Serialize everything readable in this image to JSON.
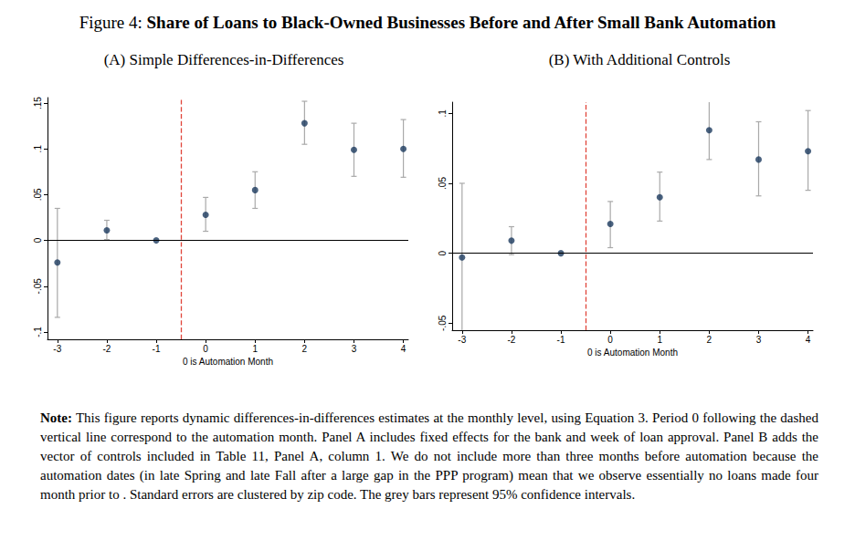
{
  "title_label": "Figure 4:",
  "title": "Share of Loans to Black-Owned Businesses Before and After Small Bank Automation",
  "note_label": "Note:",
  "note": "This figure reports dynamic differences-in-differences estimates at the monthly level, using Equation 3. Period 0 following the dashed vertical line correspond to the automation month. Panel A includes fixed effects for the bank and week of loan approval. Panel B adds the vector of controls included in Table 11, Panel A, column 1. We do not include more than three months before automation because the automation dates (in late Spring and late Fall after a large gap in the PPP program) mean that we observe essentially no loans made four month prior to . Standard errors are clustered by zip code. The grey bars represent 95% confidence intervals.",
  "chart_data": [
    {
      "type": "scatter",
      "title": "(A) Simple Differences-in-Differences",
      "x_label": "0 is Automation Month",
      "x": [
        -3,
        -2,
        -1,
        0,
        1,
        2,
        3,
        4
      ],
      "values": [
        -0.024,
        0.011,
        0,
        0.028,
        0.055,
        0.128,
        0.099,
        0.1
      ],
      "ci_low": [
        -0.084,
        0.001,
        null,
        0.01,
        0.035,
        0.105,
        0.07,
        0.069
      ],
      "ci_high": [
        0.035,
        0.022,
        null,
        0.047,
        0.075,
        0.152,
        0.128,
        0.132
      ],
      "color": "#1b3a5e",
      "vline": -0.5,
      "hline": 0,
      "xlim": [
        -3.2,
        4.1
      ],
      "xticks": [
        -3,
        -2,
        -1,
        0,
        1,
        2,
        3,
        4
      ],
      "ylim": [
        -0.108,
        0.156
      ],
      "yticks": [
        {
          "value": -0.1,
          "label": "-.1"
        },
        {
          "value": -0.05,
          "label": "-.05"
        },
        0,
        {
          "value": 0.05,
          "label": ".05"
        },
        {
          "value": 0.1,
          "label": ".1"
        },
        {
          "value": 0.15,
          "label": ".15"
        }
      ],
      "grid": false
    },
    {
      "type": "scatter",
      "title": "(B) With Additional Controls",
      "x_label": "0 is Automation Month",
      "x": [
        -3,
        -2,
        -1,
        0,
        1,
        2,
        3,
        4
      ],
      "values": [
        -0.003,
        0.009,
        0,
        0.021,
        0.04,
        0.088,
        0.067,
        0.073
      ],
      "ci_low": [
        -0.057,
        -0.001,
        null,
        0.004,
        0.023,
        0.067,
        0.041,
        0.045
      ],
      "ci_high": [
        0.05,
        0.019,
        null,
        0.037,
        0.058,
        0.109,
        0.094,
        0.102
      ],
      "color": "#1b3a5e",
      "vline": -0.5,
      "hline": 0,
      "xlim": [
        -3.2,
        4.1
      ],
      "xticks": [
        -3,
        -2,
        -1,
        0,
        1,
        2,
        3,
        4
      ],
      "ylim": [
        -0.055,
        0.108
      ],
      "yticks": [
        {
          "value": -0.05,
          "label": "-.05"
        },
        0,
        {
          "value": 0.05,
          "label": ".05"
        },
        {
          "value": 0.1,
          "label": ".1"
        }
      ],
      "grid": false
    }
  ]
}
